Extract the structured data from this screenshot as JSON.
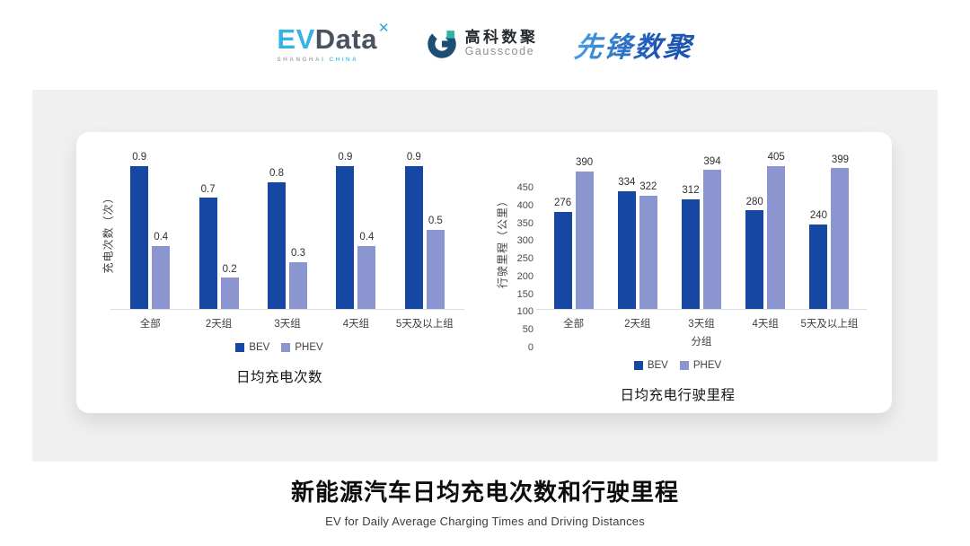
{
  "header": {
    "evdata": {
      "part1": "EV",
      "part2": "Data",
      "mark": "✕",
      "sub1": "SHANGHAI",
      "sub2": "CHINA"
    },
    "gausscode": {
      "cn": "高科数聚",
      "en": "Gausscode"
    },
    "pioneer": {
      "text": "先锋数聚"
    }
  },
  "colors": {
    "bev": "#1648A3",
    "phev": "#8B96D0",
    "panel_bg": "#F0F0F0",
    "baseline": "#DCDCDC",
    "gauss_navy": "#1D4F74",
    "gauss_teal": "#2FB3A4",
    "evdata_blue": "#35B3E7"
  },
  "chart_data": [
    {
      "type": "bar",
      "title": "日均充电次数",
      "ylabel": "充电次数（次）",
      "xlabel": "",
      "categories": [
        "全部",
        "2天组",
        "3天组",
        "4天组",
        "5天及以上组"
      ],
      "series": [
        {
          "name": "BEV",
          "color": "#1648A3",
          "values": [
            0.9,
            0.7,
            0.8,
            0.9,
            0.9
          ]
        },
        {
          "name": "PHEV",
          "color": "#8B96D0",
          "values": [
            0.4,
            0.2,
            0.3,
            0.4,
            0.5
          ]
        }
      ],
      "ylim": [
        0,
        1.0
      ],
      "yticks": null,
      "grid": false,
      "value_labels": true,
      "legend_position": "bottom"
    },
    {
      "type": "bar",
      "title": "日均充电行驶里程",
      "ylabel": "行驶里程（公里）",
      "xlabel": "分组",
      "categories": [
        "全部",
        "2天组",
        "3天组",
        "4天组",
        "5天及以上组"
      ],
      "series": [
        {
          "name": "BEV",
          "color": "#1648A3",
          "values": [
            276,
            334,
            312,
            280,
            240
          ]
        },
        {
          "name": "PHEV",
          "color": "#8B96D0",
          "values": [
            390,
            322,
            394,
            405,
            399
          ]
        }
      ],
      "ylim": [
        0,
        450
      ],
      "yticks": [
        0,
        50,
        100,
        150,
        200,
        250,
        300,
        350,
        400,
        450
      ],
      "grid": false,
      "value_labels": true,
      "legend_position": "bottom"
    }
  ],
  "footer": {
    "title_cn": "新能源汽车日均充电次数和行驶里程",
    "title_en": "EV for Daily Average Charging Times and Driving Distances"
  }
}
